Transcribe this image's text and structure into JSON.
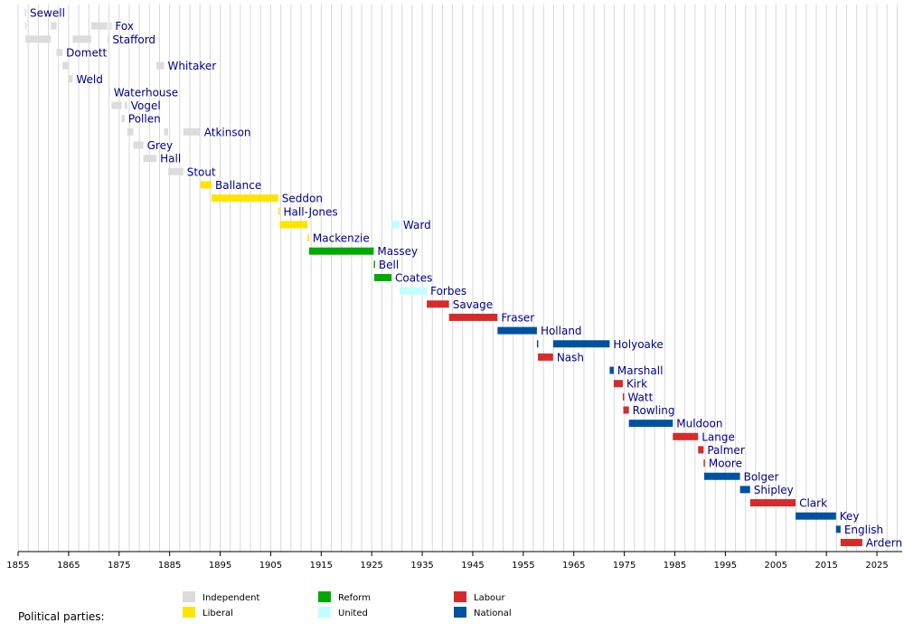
{
  "chart_data": {
    "type": "timeline",
    "xlim": [
      1855,
      2030
    ],
    "ticks": [
      1855,
      1865,
      1875,
      1885,
      1895,
      1905,
      1915,
      1925,
      1935,
      1945,
      1955,
      1965,
      1975,
      1985,
      1995,
      2005,
      2015,
      2025
    ],
    "minor_step": 2,
    "grid": true,
    "parties": [
      {
        "key": "independent",
        "name": "Independent",
        "color": "#dcdcdc"
      },
      {
        "key": "liberal",
        "name": "Liberal",
        "color": "#ffe400"
      },
      {
        "key": "reform",
        "name": "Reform",
        "color": "#00aa00"
      },
      {
        "key": "united",
        "name": "United",
        "color": "#bfffff"
      },
      {
        "key": "labour",
        "name": "Labour",
        "color": "#d62b2b"
      },
      {
        "key": "national",
        "name": "National",
        "color": "#00529f"
      }
    ],
    "legend_title": "Political parties:",
    "legend_position": "bottom-left",
    "ministers": [
      {
        "name": "Sewell",
        "party": "independent",
        "terms": [
          [
            1856.35,
            1856.4
          ]
        ]
      },
      {
        "name": "Fox",
        "party": "independent",
        "terms": [
          [
            1856.4,
            1856.45
          ],
          [
            1861.5,
            1862.6
          ],
          [
            1869.5,
            1872.7
          ],
          [
            1873.2,
            1873.5
          ]
        ]
      },
      {
        "name": "Stafford",
        "party": "independent",
        "terms": [
          [
            1856.45,
            1861.5
          ],
          [
            1865.8,
            1869.5
          ],
          [
            1872.7,
            1872.9
          ]
        ]
      },
      {
        "name": "Domett",
        "party": "independent",
        "terms": [
          [
            1862.6,
            1863.8
          ]
        ]
      },
      {
        "name": "Whitaker",
        "party": "independent",
        "terms": [
          [
            1863.8,
            1864.9
          ],
          [
            1882.4,
            1883.9
          ]
        ]
      },
      {
        "name": "Weld",
        "party": "independent",
        "terms": [
          [
            1864.9,
            1865.8
          ]
        ]
      },
      {
        "name": "Waterhouse",
        "party": "independent",
        "terms": [
          [
            1872.9,
            1873.2
          ]
        ]
      },
      {
        "name": "Vogel",
        "party": "independent",
        "terms": [
          [
            1873.5,
            1875.5
          ],
          [
            1876.1,
            1876.6
          ]
        ]
      },
      {
        "name": "Pollen",
        "party": "independent",
        "terms": [
          [
            1875.5,
            1876.1
          ]
        ]
      },
      {
        "name": "Atkinson",
        "party": "independent",
        "terms": [
          [
            1876.6,
            1877.8
          ],
          [
            1883.9,
            1884.7
          ],
          [
            1887.7,
            1891.1
          ]
        ]
      },
      {
        "name": "Grey",
        "party": "independent",
        "terms": [
          [
            1877.8,
            1879.8
          ]
        ]
      },
      {
        "name": "Hall",
        "party": "independent",
        "terms": [
          [
            1879.8,
            1882.4
          ]
        ]
      },
      {
        "name": "Stout",
        "party": "independent",
        "terms": [
          [
            1884.7,
            1887.7
          ]
        ]
      },
      {
        "name": "Ballance",
        "party": "liberal",
        "terms": [
          [
            1891.1,
            1893.3
          ]
        ]
      },
      {
        "name": "Seddon",
        "party": "liberal",
        "terms": [
          [
            1893.3,
            1906.5
          ]
        ]
      },
      {
        "name": "Hall-Jones",
        "party": "liberal",
        "terms": [
          [
            1906.5,
            1906.8
          ]
        ]
      },
      {
        "name": "Ward",
        "party": "liberal",
        "terms": [
          [
            1906.8,
            1912.3
          ]
        ]
      },
      {
        "name": "Ward",
        "party": "united",
        "terms": [
          [
            1928.9,
            1930.5
          ]
        ]
      },
      {
        "name": "Mackenzie",
        "party": "liberal",
        "terms": [
          [
            1912.3,
            1912.6
          ]
        ]
      },
      {
        "name": "Massey",
        "party": "reform",
        "terms": [
          [
            1912.6,
            1925.4
          ]
        ]
      },
      {
        "name": "Bell",
        "party": "reform",
        "terms": [
          [
            1925.4,
            1925.5
          ]
        ]
      },
      {
        "name": "Coates",
        "party": "reform",
        "terms": [
          [
            1925.5,
            1928.9
          ]
        ]
      },
      {
        "name": "Forbes",
        "party": "united",
        "terms": [
          [
            1930.5,
            1935.9
          ]
        ]
      },
      {
        "name": "Savage",
        "party": "labour",
        "terms": [
          [
            1935.9,
            1940.3
          ]
        ]
      },
      {
        "name": "Fraser",
        "party": "labour",
        "terms": [
          [
            1940.3,
            1949.9
          ]
        ]
      },
      {
        "name": "Holland",
        "party": "national",
        "terms": [
          [
            1949.9,
            1957.7
          ]
        ]
      },
      {
        "name": "Holyoake",
        "party": "national",
        "terms": [
          [
            1957.7,
            1957.9
          ],
          [
            1960.9,
            1972.1
          ]
        ]
      },
      {
        "name": "Nash",
        "party": "labour",
        "terms": [
          [
            1957.9,
            1960.9
          ]
        ]
      },
      {
        "name": "Marshall",
        "party": "national",
        "terms": [
          [
            1972.1,
            1972.9
          ]
        ]
      },
      {
        "name": "Kirk",
        "party": "labour",
        "terms": [
          [
            1972.9,
            1974.7
          ]
        ]
      },
      {
        "name": "Watt",
        "party": "labour",
        "terms": [
          [
            1974.7,
            1974.8
          ]
        ]
      },
      {
        "name": "Rowling",
        "party": "labour",
        "terms": [
          [
            1974.8,
            1975.9
          ]
        ]
      },
      {
        "name": "Muldoon",
        "party": "national",
        "terms": [
          [
            1975.9,
            1984.6
          ]
        ]
      },
      {
        "name": "Lange",
        "party": "labour",
        "terms": [
          [
            1984.6,
            1989.6
          ]
        ]
      },
      {
        "name": "Palmer",
        "party": "labour",
        "terms": [
          [
            1989.6,
            1990.7
          ]
        ]
      },
      {
        "name": "Moore",
        "party": "labour",
        "terms": [
          [
            1990.7,
            1990.8
          ]
        ]
      },
      {
        "name": "Bolger",
        "party": "national",
        "terms": [
          [
            1990.8,
            1997.9
          ]
        ]
      },
      {
        "name": "Shipley",
        "party": "national",
        "terms": [
          [
            1997.9,
            1999.9
          ]
        ]
      },
      {
        "name": "Clark",
        "party": "labour",
        "terms": [
          [
            1999.9,
            2008.9
          ]
        ]
      },
      {
        "name": "Key",
        "party": "national",
        "terms": [
          [
            2008.9,
            2016.9
          ]
        ]
      },
      {
        "name": "English",
        "party": "national",
        "terms": [
          [
            2016.9,
            2017.8
          ]
        ]
      },
      {
        "name": "Ardern",
        "party": "labour",
        "terms": [
          [
            2017.8,
            2022.1
          ]
        ]
      }
    ]
  }
}
